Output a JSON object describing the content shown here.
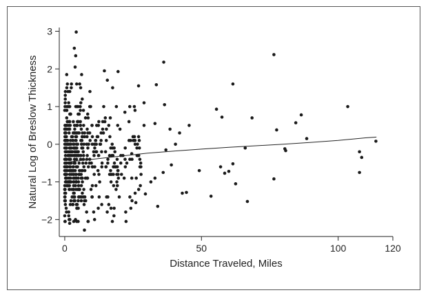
{
  "chart_data": {
    "type": "scatter",
    "title": "",
    "xlabel": "Distance Traveled, Miles",
    "ylabel": "Natural Log of Breslow Thickness",
    "xlim": [
      -2,
      120
    ],
    "ylim": [
      -2.45,
      3.1
    ],
    "x_ticks": [
      0,
      50,
      100,
      120
    ],
    "y_ticks": [
      -2,
      -1,
      0,
      1,
      2,
      3
    ],
    "x_tick_labels": [
      "0",
      "50",
      "100",
      "120"
    ],
    "y_tick_labels": [
      "−2",
      "−1",
      "0",
      "1",
      "2",
      "3"
    ],
    "grid": false,
    "legend": "none",
    "colors": {
      "points": "#1a1a1a",
      "axes": "#222222",
      "trend": "#222222"
    },
    "outlier_points": [
      {
        "x": 4.2,
        "y": 2.98
      },
      {
        "x": 3.5,
        "y": 2.55
      },
      {
        "x": 4.0,
        "y": 2.35
      },
      {
        "x": 3.8,
        "y": 2.05
      },
      {
        "x": 7.2,
        "y": -2.28
      },
      {
        "x": 1.8,
        "y": -2.1
      },
      {
        "x": 14.5,
        "y": 1.95
      },
      {
        "x": 19.5,
        "y": 1.93
      },
      {
        "x": 36.2,
        "y": 2.18
      },
      {
        "x": 76.5,
        "y": 2.38
      },
      {
        "x": 61.5,
        "y": 1.6
      },
      {
        "x": 103.5,
        "y": 1.0
      },
      {
        "x": 55.5,
        "y": 0.93
      },
      {
        "x": 57.5,
        "y": 0.72
      },
      {
        "x": 68.5,
        "y": 0.7
      },
      {
        "x": 86.5,
        "y": 0.78
      },
      {
        "x": 84.5,
        "y": 0.57
      },
      {
        "x": 77.5,
        "y": 0.38
      },
      {
        "x": 113.8,
        "y": 0.08
      },
      {
        "x": 107.8,
        "y": -0.2
      },
      {
        "x": 108.6,
        "y": -0.35
      },
      {
        "x": 107.8,
        "y": -0.75
      },
      {
        "x": 88.5,
        "y": 0.15
      },
      {
        "x": 80.5,
        "y": -0.12
      },
      {
        "x": 80.8,
        "y": -0.17
      },
      {
        "x": 66.0,
        "y": -0.1
      },
      {
        "x": 76.5,
        "y": -0.92
      },
      {
        "x": 61.5,
        "y": -0.52
      },
      {
        "x": 60.0,
        "y": -0.72
      },
      {
        "x": 57.0,
        "y": -0.6
      },
      {
        "x": 58.5,
        "y": -0.77
      },
      {
        "x": 62.5,
        "y": -1.05
      },
      {
        "x": 66.8,
        "y": -1.52
      },
      {
        "x": 53.5,
        "y": -1.38
      },
      {
        "x": 49.2,
        "y": -0.7
      },
      {
        "x": 44.5,
        "y": -1.28
      },
      {
        "x": 43.0,
        "y": -1.3
      },
      {
        "x": 34.0,
        "y": -1.65
      },
      {
        "x": 29.5,
        "y": -1.32
      },
      {
        "x": 26.0,
        "y": -1.55
      },
      {
        "x": 18.0,
        "y": -1.9
      },
      {
        "x": 29.0,
        "y": 0.5
      },
      {
        "x": 33.0,
        "y": 0.55
      },
      {
        "x": 38.5,
        "y": 0.4
      },
      {
        "x": 42.0,
        "y": 0.3
      },
      {
        "x": 36.5,
        "y": 1.05
      },
      {
        "x": 33.5,
        "y": 1.58
      },
      {
        "x": 27.0,
        "y": 1.55
      },
      {
        "x": 29.0,
        "y": 1.1
      },
      {
        "x": 40.5,
        "y": 0.0
      },
      {
        "x": 37.0,
        "y": -0.15
      },
      {
        "x": 45.5,
        "y": 0.5
      },
      {
        "x": 39.0,
        "y": -0.55
      },
      {
        "x": 33.0,
        "y": -0.9
      },
      {
        "x": 36.0,
        "y": -0.75
      },
      {
        "x": 31.5,
        "y": -1.0
      },
      {
        "x": 27.5,
        "y": -0.6
      },
      {
        "x": 24.5,
        "y": -0.25
      },
      {
        "x": 25.5,
        "y": 0.2
      },
      {
        "x": 22.0,
        "y": 0.85
      },
      {
        "x": 23.5,
        "y": 0.6
      }
    ],
    "cluster": {
      "n": 560,
      "x_range": [
        0,
        28
      ],
      "x_mode": 4,
      "y_mean": -0.4,
      "y_sd": 0.82,
      "seed": 17
    },
    "trend_line": {
      "x": [
        0,
        5,
        10,
        15,
        20,
        25,
        30,
        40,
        50,
        60,
        70,
        80,
        90,
        100,
        110,
        114
      ],
      "y": [
        -0.48,
        -0.44,
        -0.4,
        -0.36,
        -0.32,
        -0.28,
        -0.24,
        -0.18,
        -0.13,
        -0.08,
        -0.04,
        0.0,
        0.05,
        0.1,
        0.17,
        0.19
      ]
    }
  }
}
